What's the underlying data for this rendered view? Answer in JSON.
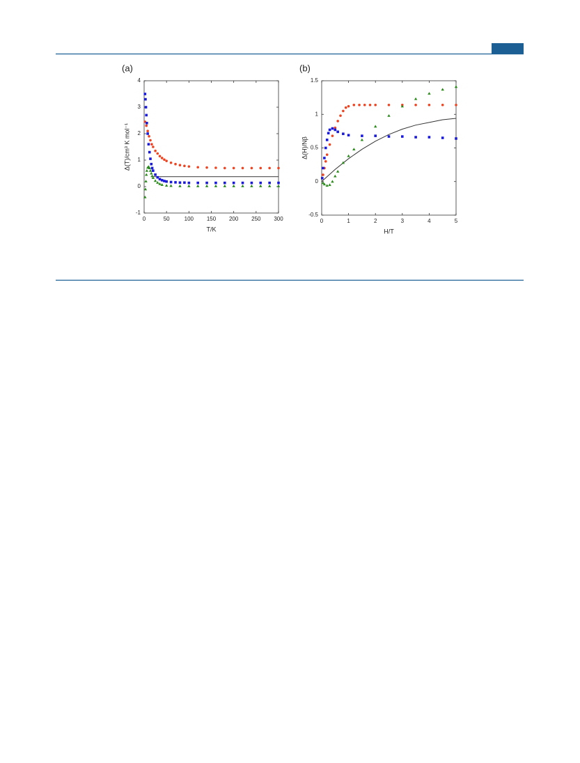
{
  "chart_data": [
    {
      "type": "scatter",
      "panel_label": "(a)",
      "xlabel": "T/K",
      "ylabel": "Δ(T)/cm³ K mol⁻¹",
      "xlim": [
        0,
        300
      ],
      "ylim": [
        -1,
        4
      ],
      "xticks": [
        0,
        50,
        100,
        150,
        200,
        250,
        300
      ],
      "yticks": [
        -1,
        0,
        1,
        2,
        3,
        4
      ],
      "series": [
        {
          "marker": "line",
          "color": "#333333",
          "x": [
            15,
            300
          ],
          "values": [
            0.375,
            0.375
          ]
        },
        {
          "marker": "circle",
          "color": "#ee4422",
          "x": [
            2,
            5,
            8,
            11,
            14,
            17,
            20,
            25,
            30,
            35,
            40,
            45,
            50,
            60,
            70,
            80,
            90,
            100,
            120,
            140,
            160,
            180,
            200,
            220,
            240,
            260,
            280,
            300
          ],
          "values": [
            2.45,
            2.3,
            2.1,
            1.9,
            1.75,
            1.6,
            1.5,
            1.35,
            1.25,
            1.15,
            1.08,
            1.02,
            0.97,
            0.9,
            0.85,
            0.81,
            0.78,
            0.76,
            0.73,
            0.72,
            0.71,
            0.7,
            0.7,
            0.7,
            0.7,
            0.7,
            0.7,
            0.7
          ]
        },
        {
          "marker": "square",
          "color": "#1a1adb",
          "x": [
            2,
            3,
            4,
            5,
            6,
            8,
            10,
            12,
            14,
            16,
            18,
            20,
            25,
            30,
            35,
            40,
            45,
            50,
            60,
            70,
            80,
            90,
            100,
            120,
            140,
            160,
            180,
            200,
            220,
            240,
            260,
            280,
            300
          ],
          "values": [
            3.5,
            3.3,
            3.0,
            2.7,
            2.4,
            2.0,
            1.6,
            1.3,
            1.05,
            0.85,
            0.7,
            0.6,
            0.45,
            0.35,
            0.28,
            0.24,
            0.21,
            0.19,
            0.17,
            0.16,
            0.15,
            0.15,
            0.14,
            0.14,
            0.14,
            0.14,
            0.14,
            0.14,
            0.14,
            0.14,
            0.14,
            0.14,
            0.14
          ]
        },
        {
          "marker": "triangle",
          "color": "#2a8a1a",
          "x": [
            2,
            3,
            4,
            5,
            6,
            8,
            10,
            12,
            14,
            16,
            18,
            20,
            25,
            30,
            35,
            40,
            50,
            60,
            80,
            100,
            120,
            140,
            160,
            180,
            200,
            220,
            240,
            260,
            280,
            300
          ],
          "values": [
            -0.4,
            -0.1,
            0.2,
            0.45,
            0.6,
            0.72,
            0.75,
            0.7,
            0.6,
            0.5,
            0.4,
            0.33,
            0.22,
            0.15,
            0.1,
            0.07,
            0.04,
            0.03,
            0.02,
            0.02,
            0.02,
            0.02,
            0.02,
            0.02,
            0.02,
            0.02,
            0.02,
            0.02,
            0.02,
            0.02
          ]
        }
      ]
    },
    {
      "type": "scatter",
      "panel_label": "(b)",
      "xlabel": "H/T",
      "ylabel": "Δ(H)/Nβ",
      "xlim": [
        0,
        5
      ],
      "ylim": [
        -0.5,
        1.5
      ],
      "xticks": [
        0,
        1,
        2,
        3,
        4,
        5
      ],
      "yticks": [
        -0.5,
        0,
        0.5,
        1,
        1.5
      ],
      "series": [
        {
          "marker": "line",
          "color": "#333333",
          "x": [
            0,
            0.5,
            1,
            1.5,
            2,
            2.5,
            3,
            3.5,
            4,
            4.5,
            5
          ],
          "values": [
            0,
            0.18,
            0.34,
            0.48,
            0.6,
            0.7,
            0.78,
            0.84,
            0.88,
            0.92,
            0.94
          ]
        },
        {
          "marker": "circle",
          "color": "#ee4422",
          "x": [
            0.05,
            0.1,
            0.15,
            0.2,
            0.3,
            0.4,
            0.5,
            0.6,
            0.7,
            0.8,
            0.9,
            1.0,
            1.2,
            1.4,
            1.6,
            1.8,
            2.0,
            2.5,
            3,
            3.5,
            4,
            4.5,
            5
          ],
          "values": [
            0.1,
            0.2,
            0.3,
            0.4,
            0.55,
            0.68,
            0.8,
            0.9,
            0.98,
            1.05,
            1.1,
            1.12,
            1.14,
            1.14,
            1.14,
            1.14,
            1.14,
            1.14,
            1.14,
            1.14,
            1.14,
            1.14,
            1.14
          ]
        },
        {
          "marker": "square",
          "color": "#1a1adb",
          "x": [
            0.02,
            0.05,
            0.1,
            0.15,
            0.2,
            0.25,
            0.3,
            0.4,
            0.5,
            0.6,
            0.8,
            1.0,
            1.5,
            2,
            2.5,
            3,
            3.5,
            4,
            4.5,
            5
          ],
          "values": [
            0.05,
            0.2,
            0.35,
            0.5,
            0.62,
            0.72,
            0.77,
            0.79,
            0.77,
            0.74,
            0.71,
            0.69,
            0.68,
            0.68,
            0.67,
            0.67,
            0.66,
            0.66,
            0.65,
            0.64
          ]
        },
        {
          "marker": "triangle",
          "color": "#2a8a1a",
          "x": [
            0.05,
            0.1,
            0.2,
            0.3,
            0.4,
            0.5,
            0.6,
            0.8,
            1.0,
            1.2,
            1.5,
            2,
            2.5,
            3,
            3.5,
            4,
            4.5,
            5
          ],
          "values": [
            -0.02,
            -0.04,
            -0.06,
            -0.05,
            0.0,
            0.08,
            0.15,
            0.28,
            0.38,
            0.48,
            0.62,
            0.82,
            0.98,
            1.12,
            1.23,
            1.31,
            1.37,
            1.41
          ]
        }
      ]
    }
  ]
}
